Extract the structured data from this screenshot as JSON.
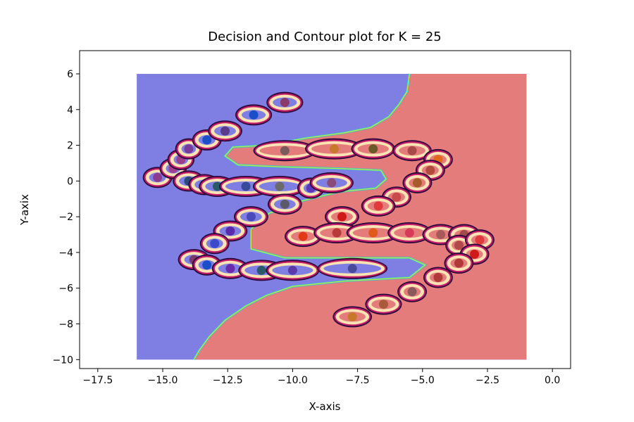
{
  "chart_data": {
    "type": "scatter",
    "title": "Decision and Contour plot for K = 25",
    "xlabel": "X-axis",
    "ylabel": "Y-axix",
    "xlim": [
      -18.2,
      0.7
    ],
    "ylim": [
      -10.5,
      7.3
    ],
    "xticks": [
      -17.5,
      -15.0,
      -12.5,
      -10.0,
      -7.5,
      -5.0,
      -2.5,
      0.0
    ],
    "xtick_labels": [
      "−17.5",
      "−15.0",
      "−12.5",
      "−10.0",
      "−7.5",
      "−5.0",
      "−2.5",
      "0.0"
    ],
    "yticks": [
      -10,
      -8,
      -6,
      -4,
      -2,
      0,
      2,
      4,
      6
    ],
    "ytick_labels": [
      "−10",
      "−8",
      "−6",
      "−4",
      "−2",
      "0",
      "2",
      "4",
      "6"
    ],
    "grid": false,
    "region_extent": {
      "x": [
        -16.0,
        -1.0
      ],
      "y": [
        -10.0,
        6.0
      ]
    },
    "colors": {
      "class_a_region": "#7f7fe3",
      "class_b_region": "#e47c7c",
      "boundary": "#c8e83c",
      "ring_outer": "#2a0a3a",
      "ring_mid": "#c21c6a",
      "ring_inner": "#fbe3b3"
    },
    "boundary": [
      [
        -5.5,
        6.0
      ],
      [
        -5.6,
        5.0
      ],
      [
        -5.9,
        4.3
      ],
      [
        -6.3,
        3.6
      ],
      [
        -7.0,
        3.0
      ],
      [
        -8.0,
        2.7
      ],
      [
        -9.5,
        2.4
      ],
      [
        -11.0,
        2.0
      ],
      [
        -12.3,
        1.9
      ],
      [
        -12.6,
        1.4
      ],
      [
        -12.1,
        0.9
      ],
      [
        -10.5,
        0.8
      ],
      [
        -8.2,
        0.7
      ],
      [
        -6.6,
        0.6
      ],
      [
        -6.4,
        0.1
      ],
      [
        -6.8,
        -0.4
      ],
      [
        -8.2,
        -0.6
      ],
      [
        -9.6,
        -1.1
      ],
      [
        -10.9,
        -1.8
      ],
      [
        -11.6,
        -2.7
      ],
      [
        -11.6,
        -3.8
      ],
      [
        -10.3,
        -4.3
      ],
      [
        -7.8,
        -4.3
      ],
      [
        -5.5,
        -4.3
      ],
      [
        -4.9,
        -4.7
      ],
      [
        -5.5,
        -5.4
      ],
      [
        -8.0,
        -5.6
      ],
      [
        -10.0,
        -5.9
      ],
      [
        -11.0,
        -6.4
      ],
      [
        -11.8,
        -7.0
      ],
      [
        -12.6,
        -7.8
      ],
      [
        -13.2,
        -8.7
      ],
      [
        -13.6,
        -9.5
      ],
      [
        -13.8,
        -10.0
      ]
    ],
    "series": [
      {
        "class": "blue",
        "points": [
          {
            "x": -15.2,
            "y": 0.2,
            "c": "#8e3a8e",
            "w": 1.0
          },
          {
            "x": -14.6,
            "y": 0.7,
            "c": "#a04090",
            "w": 0.9
          },
          {
            "x": -14.3,
            "y": 1.2,
            "c": "#9a3e8a",
            "w": 0.9
          },
          {
            "x": -14.0,
            "y": 1.8,
            "c": "#7a3a9a",
            "w": 0.9
          },
          {
            "x": -13.3,
            "y": 2.3,
            "c": "#1a4fc8",
            "w": 1.0
          },
          {
            "x": -12.6,
            "y": 2.8,
            "c": "#5a3a8a",
            "w": 1.2
          },
          {
            "x": -11.5,
            "y": 3.7,
            "c": "#1a4fc8",
            "w": 1.3
          },
          {
            "x": -10.3,
            "y": 4.4,
            "c": "#8a3a6a",
            "w": 1.3
          },
          {
            "x": -14.0,
            "y": 0.0,
            "c": "#2a4a7a",
            "w": 1.1
          },
          {
            "x": -13.4,
            "y": -0.2,
            "c": "#1a4fc8",
            "w": 1.1
          },
          {
            "x": -12.9,
            "y": -0.3,
            "c": "#2a5a6a",
            "w": 1.3
          },
          {
            "x": -11.8,
            "y": -0.3,
            "c": "#3a4a9a",
            "w": 2.0
          },
          {
            "x": -10.5,
            "y": -0.3,
            "c": "#6a6a6a",
            "w": 2.0
          },
          {
            "x": -9.3,
            "y": -0.4,
            "c": "#5a3aba",
            "w": 0.9
          },
          {
            "x": -8.5,
            "y": -0.1,
            "c": "#8a4a7a",
            "w": 1.6
          },
          {
            "x": -10.3,
            "y": -1.3,
            "c": "#5a5a6a",
            "w": 1.2
          },
          {
            "x": -11.6,
            "y": -2.0,
            "c": "#4a4aba",
            "w": 1.2
          },
          {
            "x": -12.4,
            "y": -2.8,
            "c": "#5a2aaa",
            "w": 1.2
          },
          {
            "x": -13.0,
            "y": -3.5,
            "c": "#3a4acb",
            "w": 1.0
          },
          {
            "x": -13.8,
            "y": -4.4,
            "c": "#7a3a6a",
            "w": 1.1
          },
          {
            "x": -13.3,
            "y": -4.7,
            "c": "#1a4fc8",
            "w": 1.0
          },
          {
            "x": -12.4,
            "y": -4.9,
            "c": "#6a2aaa",
            "w": 1.3
          },
          {
            "x": -11.2,
            "y": -5.0,
            "c": "#2a5a6a",
            "w": 1.7
          },
          {
            "x": -10.0,
            "y": -5.0,
            "c": "#5a3aaa",
            "w": 2.0
          },
          {
            "x": -7.7,
            "y": -4.9,
            "c": "#4a4a9a",
            "w": 2.7
          }
        ]
      },
      {
        "class": "red",
        "points": [
          {
            "x": -10.3,
            "y": 1.7,
            "c": "#7a5a5a",
            "w": 2.4
          },
          {
            "x": -8.4,
            "y": 1.8,
            "c": "#c8782a",
            "w": 2.2
          },
          {
            "x": -6.9,
            "y": 1.8,
            "c": "#6a5a2a",
            "w": 1.6
          },
          {
            "x": -5.4,
            "y": 1.7,
            "c": "#a84a4a",
            "w": 1.4
          },
          {
            "x": -4.4,
            "y": 1.2,
            "c": "#e06a1a",
            "w": 1.0
          },
          {
            "x": -4.7,
            "y": 0.6,
            "c": "#b04a3a",
            "w": 1.0
          },
          {
            "x": -5.2,
            "y": -0.1,
            "c": "#a85a2a",
            "w": 1.0
          },
          {
            "x": -6.0,
            "y": -0.9,
            "c": "#c84a4a",
            "w": 1.0
          },
          {
            "x": -6.7,
            "y": -1.4,
            "c": "#e03a3a",
            "w": 1.2
          },
          {
            "x": -8.1,
            "y": -2.0,
            "c": "#d01a1a",
            "w": 1.2
          },
          {
            "x": -9.6,
            "y": -3.1,
            "c": "#e03a1a",
            "w": 1.3
          },
          {
            "x": -8.3,
            "y": -2.9,
            "c": "#b83a3a",
            "w": 1.7
          },
          {
            "x": -6.9,
            "y": -2.9,
            "c": "#e05a1a",
            "w": 2.0
          },
          {
            "x": -5.5,
            "y": -2.9,
            "c": "#d83a5a",
            "w": 1.6
          },
          {
            "x": -4.3,
            "y": -3.0,
            "c": "#a85a5a",
            "w": 1.3
          },
          {
            "x": -3.4,
            "y": -3.0,
            "c": "#a04a4a",
            "w": 1.1
          },
          {
            "x": -3.6,
            "y": -3.6,
            "c": "#b04a4a",
            "w": 0.9
          },
          {
            "x": -2.8,
            "y": -3.3,
            "c": "#e03a3a",
            "w": 1.0
          },
          {
            "x": -3.0,
            "y": -4.1,
            "c": "#d01a1a",
            "w": 1.0
          },
          {
            "x": -3.6,
            "y": -4.6,
            "c": "#b03a3a",
            "w": 1.0
          },
          {
            "x": -4.4,
            "y": -5.4,
            "c": "#b03a3a",
            "w": 1.0
          },
          {
            "x": -5.4,
            "y": -6.2,
            "c": "#8a5a5a",
            "w": 1.0
          },
          {
            "x": -6.5,
            "y": -6.9,
            "c": "#a85a3a",
            "w": 1.3
          },
          {
            "x": -7.7,
            "y": -7.6,
            "c": "#c8782a",
            "w": 1.4
          }
        ]
      }
    ]
  }
}
